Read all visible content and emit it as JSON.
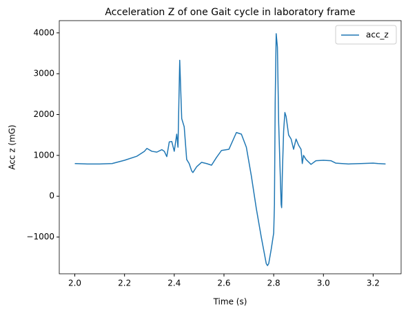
{
  "chart_data": {
    "type": "line",
    "title": "Acceleration Z of one Gait cycle in laboratory frame",
    "x_label": "Time (s)",
    "y_label": "Acc z (mG)",
    "x": [
      2.0,
      2.05,
      2.1,
      2.15,
      2.2,
      2.25,
      2.28,
      2.29,
      2.31,
      2.33,
      2.35,
      2.36,
      2.37,
      2.38,
      2.39,
      2.4,
      2.41,
      2.415,
      2.422,
      2.43,
      2.44,
      2.45,
      2.46,
      2.47,
      2.475,
      2.49,
      2.51,
      2.53,
      2.55,
      2.57,
      2.59,
      2.62,
      2.65,
      2.67,
      2.69,
      2.71,
      2.73,
      2.75,
      2.77,
      2.775,
      2.78,
      2.79,
      2.8,
      2.803,
      2.806,
      2.81,
      2.815,
      2.82,
      2.83,
      2.832,
      2.835,
      2.84,
      2.845,
      2.85,
      2.86,
      2.87,
      2.88,
      2.89,
      2.9,
      2.91,
      2.915,
      2.92,
      2.93,
      2.95,
      2.97,
      3.0,
      3.03,
      3.05,
      3.1,
      3.15,
      3.2,
      3.22,
      3.25
    ],
    "series": [
      {
        "name": "acc_z",
        "color": "#1f77b4",
        "values": [
          800,
          790,
          790,
          800,
          880,
          980,
          1100,
          1170,
          1100,
          1080,
          1140,
          1100,
          970,
          1330,
          1340,
          1100,
          1520,
          1200,
          3330,
          1900,
          1700,
          900,
          800,
          620,
          580,
          720,
          830,
          800,
          760,
          950,
          1120,
          1150,
          1560,
          1520,
          1200,
          500,
          -300,
          -1000,
          -1650,
          -1700,
          -1650,
          -1300,
          -900,
          -200,
          2300,
          3980,
          3650,
          1800,
          -200,
          -280,
          600,
          1600,
          2050,
          1950,
          1500,
          1400,
          1150,
          1400,
          1250,
          1150,
          800,
          1000,
          900,
          780,
          870,
          880,
          870,
          810,
          790,
          800,
          810,
          800,
          790
        ]
      }
    ],
    "xlim": [
      1.9375,
      3.3125
    ],
    "xticks": [
      {
        "value": 2.0,
        "label": "2.0"
      },
      {
        "value": 2.2,
        "label": "2.2"
      },
      {
        "value": 2.4,
        "label": "2.4"
      },
      {
        "value": 2.6,
        "label": "2.6"
      },
      {
        "value": 2.8,
        "label": "2.8"
      },
      {
        "value": 3.0,
        "label": "3.0"
      },
      {
        "value": 3.2,
        "label": "3.2"
      }
    ],
    "ylim": [
      -1900,
      4300
    ],
    "yticks": [
      {
        "value": -1000,
        "label": "−1000"
      },
      0,
      1000,
      2000,
      3000,
      4000
    ],
    "legend": "upper right",
    "grid": false
  }
}
